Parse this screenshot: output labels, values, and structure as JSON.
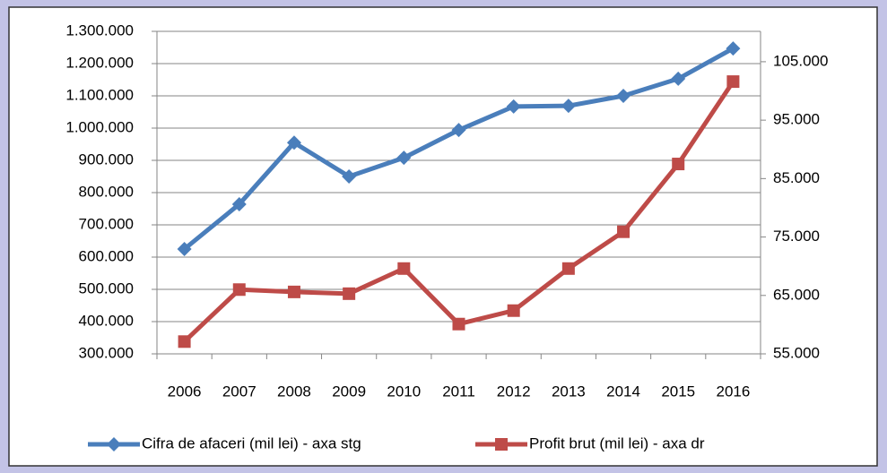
{
  "chart_data": {
    "type": "line",
    "categories": [
      "2006",
      "2007",
      "2008",
      "2009",
      "2010",
      "2011",
      "2012",
      "2013",
      "2014",
      "2015",
      "2016"
    ],
    "series": [
      {
        "name": "Cifra de afaceri (mil lei) - axa stg",
        "color": "#4a7ebb",
        "marker": "diamond",
        "values": [
          625000,
          764000,
          955000,
          850000,
          908000,
          994000,
          1067000,
          1069000,
          1100000,
          1153000,
          1247000
        ]
      },
      {
        "name": "Profit brut (mil lei) - axa dr",
        "color": "#be4b48",
        "marker": "square",
        "axis": "y2",
        "values": [
          57100,
          66000,
          65600,
          65300,
          69600,
          60100,
          62400,
          69600,
          75900,
          87500,
          101600
        ]
      }
    ],
    "ylim": [
      300000,
      1300000
    ],
    "yticks": [
      {
        "value": 300000,
        "label": "300.000"
      },
      {
        "value": 400000,
        "label": "400.000"
      },
      {
        "value": 500000,
        "label": "500.000"
      },
      {
        "value": 600000,
        "label": "600.000"
      },
      {
        "value": 700000,
        "label": "700.000"
      },
      {
        "value": 800000,
        "label": "800.000"
      },
      {
        "value": 900000,
        "label": "900.000"
      },
      {
        "value": 1000000,
        "label": "1.000.000"
      },
      {
        "value": 1100000,
        "label": "1.100.000"
      },
      {
        "value": 1200000,
        "label": "1.200.000"
      },
      {
        "value": 1300000,
        "label": "1.300.000"
      }
    ],
    "y2lim": [
      55000,
      110200
    ],
    "y2ticks": [
      {
        "value": 55000,
        "label": "55.000"
      },
      {
        "value": 65000,
        "label": "65.000"
      },
      {
        "value": 75000,
        "label": "75.000"
      },
      {
        "value": 85000,
        "label": "85.000"
      },
      {
        "value": 95000,
        "label": "95.000"
      },
      {
        "value": 105000,
        "label": "105.000"
      }
    ],
    "grid": true,
    "legend": "bottom"
  }
}
